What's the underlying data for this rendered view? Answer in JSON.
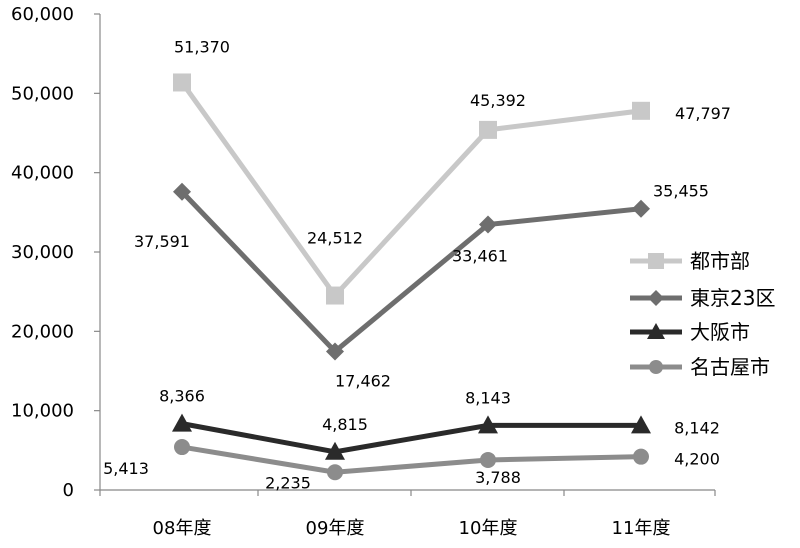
{
  "chart_data": {
    "type": "line",
    "categories": [
      "08年度",
      "09年度",
      "10年度",
      "11年度"
    ],
    "ylim": [
      0,
      60000
    ],
    "yticks": [
      0,
      10000,
      20000,
      30000,
      40000,
      50000,
      60000
    ],
    "ytick_labels": [
      "0",
      "10,000",
      "20,000",
      "30,000",
      "40,000",
      "50,000",
      "60,000"
    ],
    "grid": false,
    "legend_position": "right",
    "series": [
      {
        "name": "都市部",
        "values": [
          51370,
          24512,
          45392,
          47797
        ],
        "labels": [
          "51,370",
          "24,512",
          "45,392",
          "47,797"
        ],
        "color": "#c8c8c8",
        "marker": "square"
      },
      {
        "name": "東京23区",
        "values": [
          37591,
          17462,
          33461,
          35455
        ],
        "labels": [
          "37,591",
          "17,462",
          "33,461",
          "35,455"
        ],
        "color": "#6e6e6e",
        "marker": "diamond"
      },
      {
        "name": "大阪市",
        "values": [
          8366,
          4815,
          8143,
          8142
        ],
        "labels": [
          "8,366",
          "4,815",
          "8,143",
          "8,142"
        ],
        "color": "#2a2a2a",
        "marker": "triangle"
      },
      {
        "name": "名古屋市",
        "values": [
          5413,
          2235,
          3788,
          4200
        ],
        "labels": [
          "5,413",
          "2,235",
          "3,788",
          "4,200"
        ],
        "color": "#8c8c8c",
        "marker": "circle"
      }
    ]
  }
}
